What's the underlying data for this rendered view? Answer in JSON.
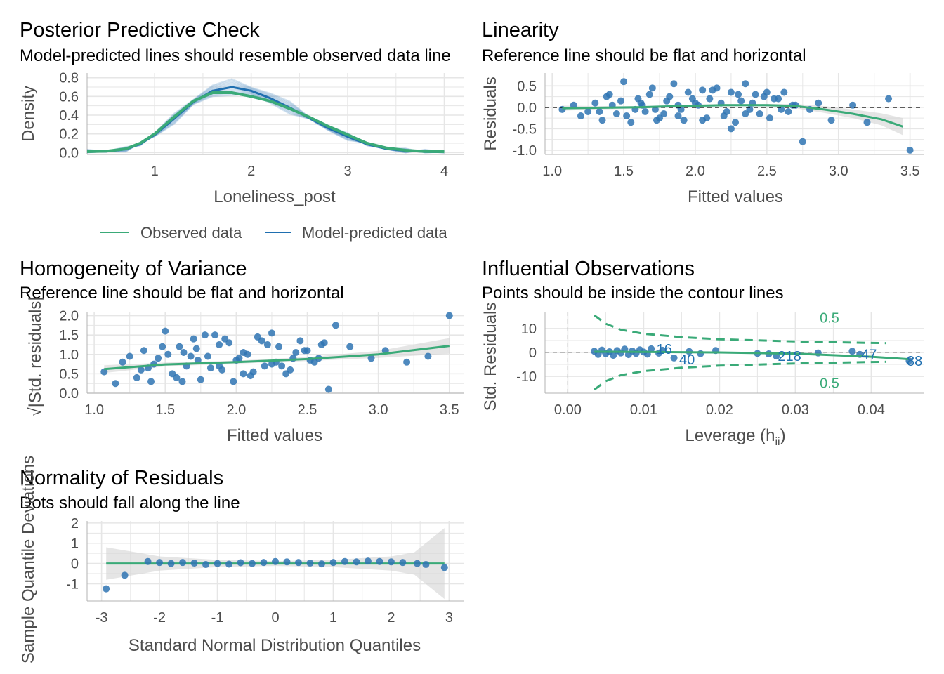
{
  "colors": {
    "green": "#3aaa78",
    "blue": "#1f6fb0",
    "point": "#2f74b3",
    "grid": "#e6e6e6",
    "band": "#cfcfcf",
    "ref": "#000000"
  },
  "chart_data": [
    {
      "id": "ppc",
      "type": "line",
      "title": "Posterior Predictive Check",
      "subtitle": "Model-predicted lines should resemble observed data line",
      "xlabel": "Loneliness_post",
      "ylabel": "Density",
      "xlim": [
        0.3,
        4.2
      ],
      "ylim": [
        -0.02,
        0.85
      ],
      "xticks": [
        "1",
        "2",
        "3",
        "4"
      ],
      "xtick_values": [
        1,
        2,
        3,
        4
      ],
      "yticks": [
        "0.0",
        "0.2",
        "0.4",
        "0.6",
        "0.8"
      ],
      "ytick_values": [
        0,
        0.2,
        0.4,
        0.6,
        0.8
      ],
      "legend": {
        "position": "bottom",
        "items": [
          "Observed data",
          "Model-predicted data"
        ]
      },
      "series": [
        {
          "name": "Observed data",
          "x": [
            0.3,
            0.5,
            0.7,
            0.85,
            1.0,
            1.2,
            1.4,
            1.6,
            1.8,
            2.0,
            2.2,
            2.4,
            2.6,
            2.8,
            3.0,
            3.2,
            3.4,
            3.6,
            3.8,
            4.0
          ],
          "y": [
            0.01,
            0.015,
            0.04,
            0.1,
            0.2,
            0.38,
            0.55,
            0.64,
            0.64,
            0.6,
            0.55,
            0.47,
            0.38,
            0.28,
            0.19,
            0.1,
            0.05,
            0.025,
            0.012,
            0.01
          ]
        },
        {
          "name": "Model-predicted data",
          "x": [
            0.3,
            0.5,
            0.7,
            0.85,
            1.0,
            1.2,
            1.4,
            1.6,
            1.8,
            2.0,
            2.2,
            2.4,
            2.6,
            2.8,
            3.0,
            3.2,
            3.4,
            3.6,
            3.8,
            4.0
          ],
          "y": [
            0.01,
            0.012,
            0.035,
            0.09,
            0.19,
            0.36,
            0.54,
            0.66,
            0.7,
            0.66,
            0.58,
            0.48,
            0.37,
            0.26,
            0.17,
            0.09,
            0.04,
            0.02,
            0.01,
            0.005
          ]
        }
      ]
    },
    {
      "id": "linearity",
      "type": "scatter",
      "title": "Linearity",
      "subtitle": "Reference line should be flat and horizontal",
      "xlabel": "Fitted values",
      "ylabel": "Residuals",
      "xlim": [
        0.95,
        3.6
      ],
      "ylim": [
        -1.1,
        0.8
      ],
      "xticks": [
        "1.0",
        "1.5",
        "2.0",
        "2.5",
        "3.0",
        "3.5"
      ],
      "xtick_values": [
        1.0,
        1.5,
        2.0,
        2.5,
        3.0,
        3.5
      ],
      "yticks": [
        "0.5",
        "0.0",
        "-0.5",
        "-1.0"
      ],
      "ytick_values": [
        0.5,
        0.0,
        -0.5,
        -1.0
      ],
      "points_x": [
        1.07,
        1.15,
        1.2,
        1.3,
        1.35,
        1.4,
        1.45,
        1.5,
        1.55,
        1.6,
        1.65,
        1.7,
        1.75,
        1.8,
        1.85,
        1.9,
        1.95,
        2.0,
        2.05,
        2.1,
        2.15,
        2.2,
        2.25,
        2.3,
        2.35,
        2.4,
        2.45,
        2.5,
        2.55,
        2.6,
        2.65,
        2.7,
        2.75,
        2.8,
        2.86,
        2.95,
        3.1,
        3.2,
        3.35,
        3.5,
        1.42,
        1.52,
        1.62,
        1.72,
        1.82,
        1.92,
        2.02,
        2.12,
        2.22,
        2.32,
        2.42,
        2.52,
        2.62,
        1.33,
        1.48,
        1.58,
        1.68,
        1.78,
        1.88,
        1.98,
        2.08,
        2.18,
        2.28,
        2.38,
        2.48,
        2.58,
        2.68,
        1.25,
        1.38,
        1.88,
        2.05,
        2.25,
        2.35,
        1.63,
        1.73
      ],
      "points_y": [
        -0.05,
        0.05,
        -0.2,
        0.1,
        -0.3,
        0.3,
        -0.15,
        0.6,
        -0.35,
        0.2,
        -0.1,
        0.45,
        -0.25,
        0.15,
        0.55,
        -0.05,
        0.35,
        0.1,
        -0.3,
        0.2,
        0.45,
        -0.2,
        -0.5,
        0.3,
        0.55,
        0.1,
        -0.15,
        0.35,
        0.2,
        -0.05,
        -0.1,
        0.05,
        -0.8,
        -0.05,
        0.1,
        -0.3,
        0.05,
        -0.35,
        0.2,
        -1.0,
        0.05,
        -0.2,
        0.1,
        -0.05,
        0.25,
        -0.3,
        0.05,
        0.4,
        -0.1,
        0.15,
        0.3,
        -0.25,
        0.35,
        -0.1,
        0.15,
        -0.05,
        0.3,
        -0.15,
        0.05,
        0.2,
        -0.25,
        0.1,
        -0.35,
        -0.05,
        0.25,
        0.2,
        0.05,
        -0.1,
        0.25,
        -0.2,
        0.4,
        0.35,
        -0.15,
        0.05,
        -0.3
      ],
      "smooth_x": [
        1.07,
        1.3,
        1.6,
        1.9,
        2.2,
        2.5,
        2.7,
        2.9,
        3.1,
        3.3,
        3.45
      ],
      "smooth_y": [
        -0.02,
        -0.01,
        0.0,
        0.03,
        0.05,
        0.05,
        0.03,
        -0.05,
        -0.15,
        -0.28,
        -0.45
      ],
      "band_half_width": [
        0.06,
        0.04,
        0.03,
        0.03,
        0.03,
        0.03,
        0.05,
        0.08,
        0.1,
        0.14,
        0.2
      ],
      "reference_line": 0
    },
    {
      "id": "homogeneity",
      "type": "scatter",
      "title": "Homogeneity of Variance",
      "subtitle": "Reference line should be flat and horizontal",
      "xlabel": "Fitted values",
      "ylabel": "√|Std. residuals|",
      "xlim": [
        0.95,
        3.6
      ],
      "ylim": [
        0,
        2.1
      ],
      "xticks": [
        "1.0",
        "1.5",
        "2.0",
        "2.5",
        "3.0",
        "3.5"
      ],
      "xtick_values": [
        1.0,
        1.5,
        2.0,
        2.5,
        3.0,
        3.5
      ],
      "yticks": [
        "2.0",
        "1.5",
        "1.0",
        "0.5",
        "0.0"
      ],
      "ytick_values": [
        2.0,
        1.5,
        1.0,
        0.5,
        0.0
      ],
      "points_x": [
        1.07,
        1.15,
        1.2,
        1.3,
        1.35,
        1.4,
        1.45,
        1.5,
        1.55,
        1.6,
        1.65,
        1.7,
        1.75,
        1.8,
        1.85,
        1.9,
        1.95,
        2.0,
        2.05,
        2.1,
        2.15,
        2.2,
        2.25,
        2.3,
        2.35,
        2.4,
        2.45,
        2.5,
        2.55,
        2.6,
        2.65,
        2.7,
        2.8,
        2.95,
        3.05,
        3.2,
        3.35,
        3.5,
        1.42,
        1.52,
        1.62,
        1.72,
        1.82,
        1.92,
        2.02,
        2.12,
        2.22,
        2.32,
        2.42,
        2.52,
        2.62,
        1.33,
        1.48,
        1.58,
        1.68,
        1.78,
        1.88,
        1.98,
        2.08,
        2.18,
        2.28,
        2.38,
        2.48,
        2.58,
        1.25,
        1.38,
        1.88,
        2.05,
        2.25,
        1.63,
        1.73
      ],
      "points_y": [
        0.55,
        0.25,
        0.8,
        0.4,
        1.1,
        0.3,
        0.9,
        1.6,
        0.5,
        1.2,
        0.7,
        1.4,
        0.35,
        0.95,
        1.5,
        0.6,
        1.3,
        0.85,
        1.05,
        0.45,
        1.45,
        0.7,
        1.55,
        1.2,
        0.5,
        0.9,
        1.35,
        1.1,
        0.8,
        1.25,
        0.1,
        1.75,
        1.2,
        0.9,
        1.1,
        0.8,
        0.95,
        2.0,
        0.75,
        1.0,
        0.3,
        1.15,
        0.65,
        1.4,
        0.9,
        0.55,
        1.25,
        0.7,
        1.05,
        0.85,
        1.3,
        0.6,
        1.2,
        0.4,
        0.95,
        1.5,
        0.7,
        0.3,
        1.0,
        1.35,
        0.8,
        0.6,
        1.1,
        0.9,
        0.95,
        0.65,
        1.25,
        0.5,
        0.75,
        1.05,
        0.85
      ],
      "smooth_x": [
        1.07,
        1.5,
        2.0,
        2.5,
        3.0,
        3.5
      ],
      "smooth_y": [
        0.62,
        0.74,
        0.8,
        0.88,
        1.0,
        1.22
      ],
      "band_half_width": [
        0.1,
        0.05,
        0.04,
        0.05,
        0.09,
        0.2
      ]
    },
    {
      "id": "influential",
      "type": "scatter",
      "title": "Influential Observations",
      "subtitle": "Points should be inside the contour lines",
      "xlabel": "Leverage (h",
      "xlabel_sub": "ii",
      "xlabel_end": ")",
      "ylabel": "Std. Residuals",
      "xlim": [
        -0.003,
        0.047
      ],
      "ylim": [
        -17,
        17
      ],
      "xticks": [
        "0.00",
        "0.01",
        "0.02",
        "0.03",
        "0.04"
      ],
      "xtick_values": [
        0.0,
        0.01,
        0.02,
        0.03,
        0.04
      ],
      "yticks": [
        "10",
        "0",
        "-10"
      ],
      "ytick_values": [
        10,
        0,
        -10
      ],
      "contour_labels": [
        "0.5",
        "0.5"
      ],
      "point_labels": [
        {
          "text": "16",
          "x": 0.0115,
          "y": 1.5
        },
        {
          "text": "40",
          "x": 0.0145,
          "y": -3.0
        },
        {
          "text": "218",
          "x": 0.0275,
          "y": -1.5
        },
        {
          "text": "47",
          "x": 0.0385,
          "y": -0.8
        },
        {
          "text": "88",
          "x": 0.0445,
          "y": -3.5
        }
      ],
      "points_x": [
        0.0035,
        0.004,
        0.0045,
        0.005,
        0.0055,
        0.006,
        0.0065,
        0.007,
        0.0075,
        0.008,
        0.0085,
        0.009,
        0.0095,
        0.01,
        0.0105,
        0.011,
        0.012,
        0.0125,
        0.014,
        0.016,
        0.0175,
        0.0195,
        0.025,
        0.0265,
        0.0275,
        0.033,
        0.0375,
        0.0385,
        0.045
      ],
      "points_y": [
        0.5,
        -0.8,
        1.0,
        -0.5,
        0.3,
        -1.2,
        0.8,
        -0.2,
        1.4,
        -0.9,
        0.6,
        -0.4,
        1.1,
        0.2,
        -0.7,
        1.5,
        -0.3,
        0.9,
        -2.3,
        0.4,
        -0.5,
        0.8,
        -0.4,
        -0.6,
        -1.5,
        -0.2,
        0.5,
        -0.8,
        -3.5
      ],
      "smooth_x": [
        0.0035,
        0.01,
        0.02,
        0.03,
        0.04,
        0.045
      ],
      "smooth_y": [
        0.3,
        0.2,
        0.0,
        -0.5,
        -1.8,
        -2.8
      ],
      "contour_x": [
        0.0035,
        0.005,
        0.007,
        0.01,
        0.015,
        0.02,
        0.03,
        0.04,
        0.042
      ],
      "contour_y": [
        15.5,
        12,
        9.5,
        7.8,
        6.4,
        5.5,
        4.6,
        4.0,
        3.9
      ]
    },
    {
      "id": "normality",
      "type": "scatter",
      "title": "Normality of Residuals",
      "subtitle": "Dots should fall along the line",
      "xlabel": "Standard Normal Distribution Quantiles",
      "ylabel": "Sample Quantile Deviations",
      "xlim": [
        -3.25,
        3.25
      ],
      "ylim": [
        -1.85,
        2.1
      ],
      "xticks": [
        "-3",
        "-2",
        "-1",
        "0",
        "1",
        "2",
        "3"
      ],
      "xtick_values": [
        -3,
        -2,
        -1,
        0,
        1,
        2,
        3
      ],
      "yticks": [
        "2",
        "1",
        "0",
        "-1"
      ],
      "ytick_values": [
        2,
        1,
        0,
        -1
      ],
      "points_x": [
        -2.92,
        -2.6,
        -2.2,
        -2.0,
        -1.8,
        -1.6,
        -1.4,
        -1.2,
        -1.0,
        -0.8,
        -0.6,
        -0.4,
        -0.2,
        0.0,
        0.2,
        0.4,
        0.6,
        0.8,
        1.0,
        1.2,
        1.4,
        1.6,
        1.8,
        2.0,
        2.2,
        2.45,
        2.6,
        2.92
      ],
      "points_y": [
        -1.25,
        -0.58,
        0.1,
        0.05,
        0.0,
        0.05,
        0.02,
        -0.05,
        0.0,
        -0.03,
        0.04,
        0.0,
        0.05,
        0.1,
        0.08,
        0.05,
        0.02,
        -0.02,
        0.05,
        0.1,
        0.08,
        0.12,
        0.1,
        0.08,
        0.05,
        0.0,
        -0.05,
        -0.2
      ],
      "band_x": [
        -2.92,
        -2.4,
        -2.0,
        -1.0,
        0.0,
        1.0,
        2.0,
        2.4,
        2.92
      ],
      "band_half_width": [
        0.8,
        0.55,
        0.35,
        0.18,
        0.12,
        0.18,
        0.35,
        0.55,
        1.75
      ]
    }
  ]
}
